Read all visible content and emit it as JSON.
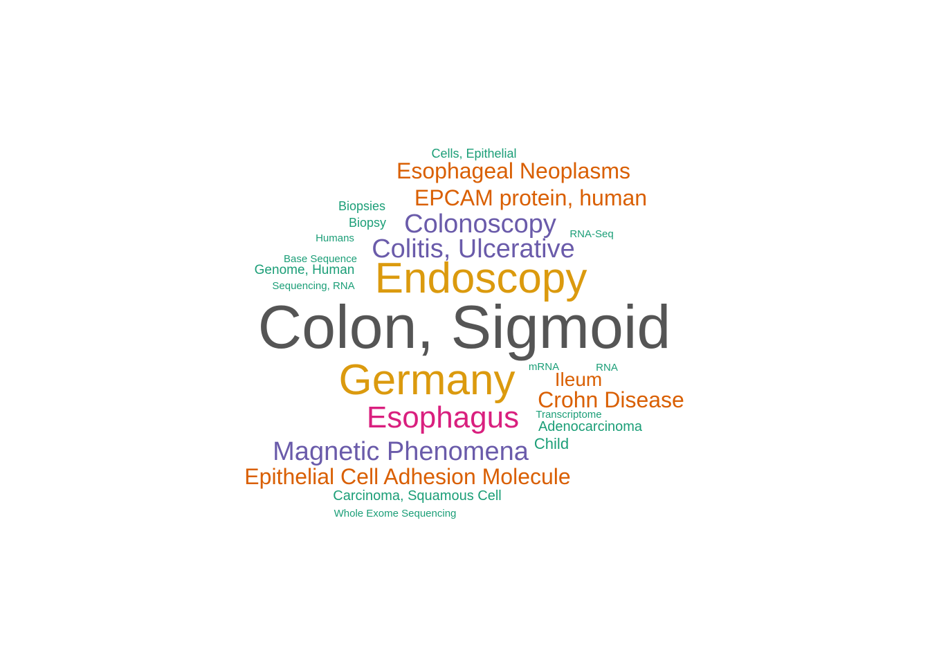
{
  "colors": {
    "dark_gray": "#555555",
    "gold": "#DB9A0E",
    "orange": "#D95F02",
    "purple": "#6A5BAA",
    "magenta": "#D91F7E",
    "teal": "#1B9E77",
    "background": "#FFFFFF"
  },
  "words": [
    {
      "text": "Colon, Sigmoid",
      "color": "#555555"
    },
    {
      "text": "Endoscopy",
      "color": "#DB9A0E"
    },
    {
      "text": "Germany",
      "color": "#DB9A0E"
    },
    {
      "text": "Esophagus",
      "color": "#D91F7E"
    },
    {
      "text": "Colitis, Ulcerative",
      "color": "#6A5BAA"
    },
    {
      "text": "Colonoscopy",
      "color": "#6A5BAA"
    },
    {
      "text": "Magnetic Phenomena",
      "color": "#6A5BAA"
    },
    {
      "text": "EPCAM protein, human",
      "color": "#D95F02"
    },
    {
      "text": "Esophageal Neoplasms",
      "color": "#D95F02"
    },
    {
      "text": "Crohn Disease",
      "color": "#D95F02"
    },
    {
      "text": "Epithelial Cell Adhesion Molecule",
      "color": "#D95F02"
    },
    {
      "text": "Ileum",
      "color": "#D95F02"
    },
    {
      "text": "Cells, Epithelial",
      "color": "#1B9E77"
    },
    {
      "text": "Biopsies",
      "color": "#1B9E77"
    },
    {
      "text": "Biopsy",
      "color": "#1B9E77"
    },
    {
      "text": "Humans",
      "color": "#1B9E77"
    },
    {
      "text": "RNA-Seq",
      "color": "#1B9E77"
    },
    {
      "text": "Base Sequence",
      "color": "#1B9E77"
    },
    {
      "text": "Genome, Human",
      "color": "#1B9E77"
    },
    {
      "text": "Sequencing, RNA",
      "color": "#1B9E77"
    },
    {
      "text": "mRNA",
      "color": "#1B9E77"
    },
    {
      "text": "RNA",
      "color": "#1B9E77"
    },
    {
      "text": "Transcriptome",
      "color": "#1B9E77"
    },
    {
      "text": "Adenocarcinoma",
      "color": "#1B9E77"
    },
    {
      "text": "Child",
      "color": "#1B9E77"
    },
    {
      "text": "Carcinoma, Squamous Cell",
      "color": "#1B9E77"
    },
    {
      "text": "Whole Exome Sequencing",
      "color": "#1B9E77"
    }
  ]
}
